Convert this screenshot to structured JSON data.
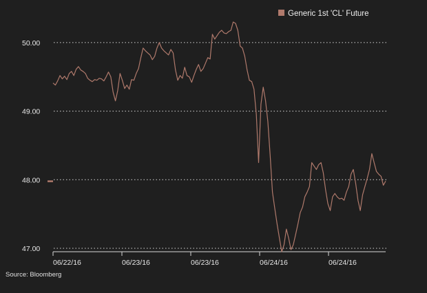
{
  "chart_data": {
    "type": "line",
    "title": "",
    "xlabel": "",
    "ylabel": "",
    "ylim": [
      46.95,
      50.32
    ],
    "x_ticks": [
      "06/22/16",
      "06/23/16",
      "06/23/16",
      "06/24/16",
      "06/24/16"
    ],
    "y_ticks": [
      {
        "value": 50,
        "label": "50.00"
      },
      {
        "value": 49,
        "label": "49.00"
      },
      {
        "value": 48,
        "label": "48.00"
      },
      {
        "value": 47,
        "label": "47.00"
      }
    ],
    "grid": "horizontal-dotted",
    "legend_placement": "top-right",
    "series": [
      {
        "name": "Generic 1st 'CL' Future",
        "color": "#b07a6c",
        "values": [
          49.41,
          49.38,
          49.44,
          49.52,
          49.47,
          49.51,
          49.46,
          49.55,
          49.58,
          49.52,
          49.61,
          49.65,
          49.6,
          49.58,
          49.55,
          49.48,
          49.45,
          49.43,
          49.46,
          49.45,
          49.48,
          49.47,
          49.44,
          49.5,
          49.57,
          49.5,
          49.28,
          49.15,
          49.3,
          49.55,
          49.45,
          49.33,
          49.38,
          49.32,
          49.46,
          49.45,
          49.55,
          49.62,
          49.78,
          49.92,
          49.88,
          49.85,
          49.82,
          49.75,
          49.8,
          49.92,
          50.0,
          49.92,
          49.88,
          49.85,
          49.82,
          49.9,
          49.85,
          49.6,
          49.45,
          49.52,
          49.48,
          49.64,
          49.52,
          49.5,
          49.42,
          49.52,
          49.61,
          49.68,
          49.58,
          49.62,
          49.7,
          49.78,
          49.76,
          50.12,
          50.05,
          50.1,
          50.15,
          50.18,
          50.14,
          50.13,
          50.16,
          50.18,
          50.3,
          50.28,
          50.18,
          49.95,
          49.92,
          49.8,
          49.6,
          49.45,
          49.43,
          49.32,
          48.95,
          48.25,
          49.1,
          49.35,
          49.15,
          48.85,
          48.35,
          47.82,
          47.58,
          47.35,
          47.15,
          46.95,
          47.05,
          47.28,
          47.15,
          46.98,
          47.05,
          47.2,
          47.35,
          47.52,
          47.6,
          47.75,
          47.82,
          47.9,
          48.25,
          48.2,
          48.15,
          48.22,
          48.25,
          48.1,
          47.85,
          47.65,
          47.55,
          47.75,
          47.8,
          47.75,
          47.72,
          47.73,
          47.7,
          47.82,
          47.9,
          48.08,
          48.15,
          47.95,
          47.7,
          47.55,
          47.78,
          47.9,
          48.02,
          48.15,
          48.38,
          48.25,
          48.12,
          48.08,
          48.05,
          47.92,
          47.98
        ]
      }
    ]
  },
  "legend": {
    "label": "Generic 1st 'CL' Future",
    "swatch_color": "#b07a6c"
  },
  "source_text": "Source: Bloomberg",
  "last_value_marker_color": "#b07a6c"
}
